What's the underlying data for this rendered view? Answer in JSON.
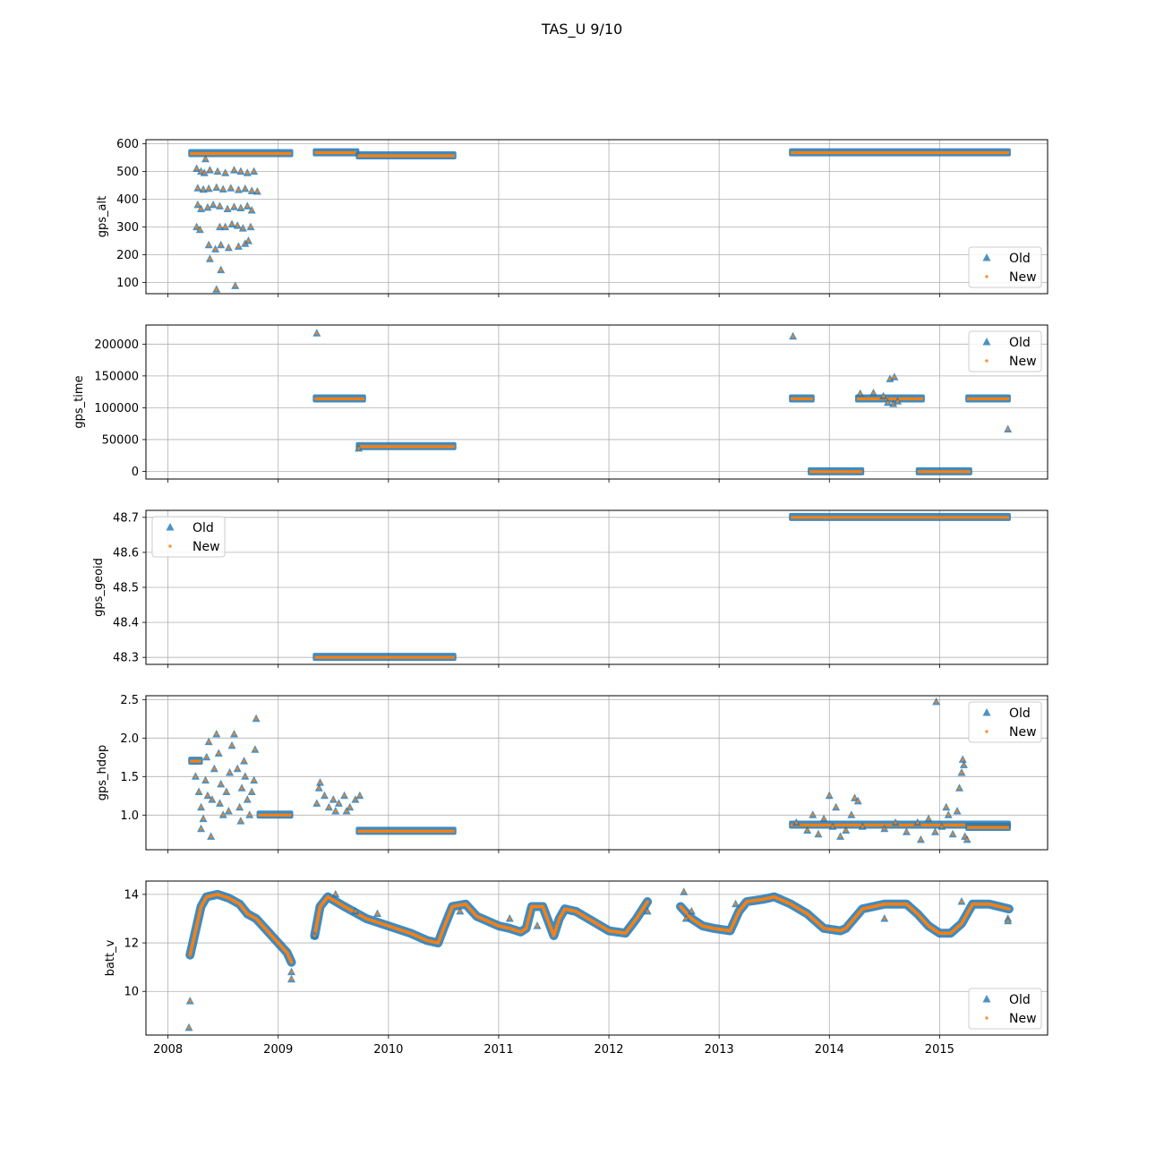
{
  "figure": {
    "title": "TAS_U 9/10"
  },
  "colors": {
    "old": "#1f77b4",
    "new": "#ff7f0e",
    "grid": "#b0b0b0"
  },
  "chart_data": [
    {
      "type": "scatter",
      "ylabel": "gps_alt",
      "xlim": [
        2007.8,
        2015.98
      ],
      "ylim": [
        60,
        615
      ],
      "yticks": [
        100,
        200,
        300,
        400,
        500,
        600
      ],
      "legend": "lower-right",
      "series": [
        {
          "name": "Old"
        },
        {
          "name": "New"
        }
      ],
      "segments": [
        {
          "x0": 2008.2,
          "x1": 2009.12,
          "y": 565
        },
        {
          "x0": 2009.33,
          "x1": 2009.72,
          "y": 568
        },
        {
          "x0": 2009.72,
          "x1": 2010.6,
          "y": 557
        },
        {
          "x0": 2013.65,
          "x1": 2015.63,
          "y": 568
        }
      ],
      "points": [
        [
          2008.26,
          510
        ],
        [
          2008.3,
          500
        ],
        [
          2008.33,
          495
        ],
        [
          2008.38,
          505
        ],
        [
          2008.45,
          500
        ],
        [
          2008.52,
          495
        ],
        [
          2008.6,
          505
        ],
        [
          2008.66,
          500
        ],
        [
          2008.72,
          495
        ],
        [
          2008.78,
          500
        ],
        [
          2008.27,
          440
        ],
        [
          2008.32,
          435
        ],
        [
          2008.37,
          438
        ],
        [
          2008.44,
          442
        ],
        [
          2008.5,
          436
        ],
        [
          2008.57,
          440
        ],
        [
          2008.64,
          434
        ],
        [
          2008.7,
          438
        ],
        [
          2008.76,
          430
        ],
        [
          2008.81,
          428
        ],
        [
          2008.27,
          380
        ],
        [
          2008.3,
          365
        ],
        [
          2008.36,
          370
        ],
        [
          2008.41,
          380
        ],
        [
          2008.47,
          375
        ],
        [
          2008.54,
          365
        ],
        [
          2008.6,
          372
        ],
        [
          2008.66,
          368
        ],
        [
          2008.72,
          375
        ],
        [
          2008.76,
          360
        ],
        [
          2008.26,
          300
        ],
        [
          2008.29,
          290
        ],
        [
          2008.47,
          300
        ],
        [
          2008.52,
          300
        ],
        [
          2008.58,
          310
        ],
        [
          2008.63,
          305
        ],
        [
          2008.68,
          295
        ],
        [
          2008.75,
          300
        ],
        [
          2008.37,
          235
        ],
        [
          2008.43,
          220
        ],
        [
          2008.48,
          235
        ],
        [
          2008.55,
          225
        ],
        [
          2008.64,
          230
        ],
        [
          2008.7,
          240
        ],
        [
          2008.73,
          250
        ],
        [
          2008.38,
          185
        ],
        [
          2008.48,
          145
        ],
        [
          2008.44,
          75
        ],
        [
          2008.61,
          88
        ],
        [
          2008.34,
          545
        ]
      ]
    },
    {
      "type": "scatter",
      "ylabel": "gps_time",
      "xlim": [
        2007.8,
        2015.98
      ],
      "ylim": [
        -12000,
        230000
      ],
      "yticks": [
        0,
        50000,
        100000,
        150000,
        200000
      ],
      "legend": "upper-right",
      "series": [
        {
          "name": "Old"
        },
        {
          "name": "New"
        }
      ],
      "segments": [
        {
          "x0": 2009.33,
          "x1": 2009.78,
          "y": 114000
        },
        {
          "x0": 2009.72,
          "x1": 2010.6,
          "y": 39000
        },
        {
          "x0": 2013.65,
          "x1": 2013.85,
          "y": 114000
        },
        {
          "x0": 2013.82,
          "x1": 2014.3,
          "y": -500
        },
        {
          "x0": 2014.25,
          "x1": 2014.85,
          "y": 114000
        },
        {
          "x0": 2014.8,
          "x1": 2015.28,
          "y": -500
        },
        {
          "x0": 2015.25,
          "x1": 2015.63,
          "y": 114000
        }
      ],
      "points": [
        [
          2009.35,
          217000
        ],
        [
          2013.67,
          212000
        ],
        [
          2009.73,
          36000
        ],
        [
          2014.28,
          122000
        ],
        [
          2014.4,
          123000
        ],
        [
          2014.49,
          118000
        ],
        [
          2014.55,
          145000
        ],
        [
          2014.59,
          148000
        ],
        [
          2014.53,
          108000
        ],
        [
          2014.58,
          106000
        ],
        [
          2014.62,
          110000
        ],
        [
          2015.62,
          66000
        ]
      ]
    },
    {
      "type": "scatter",
      "ylabel": "gps_geoid",
      "xlim": [
        2007.8,
        2015.98
      ],
      "ylim": [
        48.28,
        48.72
      ],
      "yticks": [
        48.3,
        48.4,
        48.5,
        48.6,
        48.7
      ],
      "legend": "upper-left",
      "series": [
        {
          "name": "Old"
        },
        {
          "name": "New"
        }
      ],
      "segments": [
        {
          "x0": 2009.33,
          "x1": 2010.6,
          "y": 48.3
        },
        {
          "x0": 2013.65,
          "x1": 2015.63,
          "y": 48.7
        }
      ],
      "points": []
    },
    {
      "type": "scatter",
      "ylabel": "gps_hdop",
      "xlim": [
        2007.8,
        2015.98
      ],
      "ylim": [
        0.55,
        2.55
      ],
      "yticks": [
        1.0,
        1.5,
        2.0,
        2.5
      ],
      "legend": "upper-right",
      "series": [
        {
          "name": "Old"
        },
        {
          "name": "New"
        }
      ],
      "segments": [
        {
          "x0": 2008.2,
          "x1": 2008.3,
          "y": 1.7
        },
        {
          "x0": 2008.82,
          "x1": 2009.12,
          "y": 1.0
        },
        {
          "x0": 2009.72,
          "x1": 2010.6,
          "y": 0.79
        },
        {
          "x0": 2013.65,
          "x1": 2015.63,
          "y": 0.87
        },
        {
          "x0": 2015.25,
          "x1": 2015.63,
          "y": 0.84
        }
      ],
      "points": [
        [
          2008.25,
          1.5
        ],
        [
          2008.28,
          1.3
        ],
        [
          2008.3,
          1.1
        ],
        [
          2008.32,
          0.95
        ],
        [
          2008.35,
          1.75
        ],
        [
          2008.37,
          1.95
        ],
        [
          2008.4,
          1.2
        ],
        [
          2008.42,
          1.6
        ],
        [
          2008.44,
          2.05
        ],
        [
          2008.46,
          1.8
        ],
        [
          2008.48,
          1.4
        ],
        [
          2008.5,
          1.0
        ],
        [
          2008.53,
          1.3
        ],
        [
          2008.56,
          1.55
        ],
        [
          2008.58,
          1.9
        ],
        [
          2008.6,
          2.05
        ],
        [
          2008.63,
          1.6
        ],
        [
          2008.65,
          1.1
        ],
        [
          2008.67,
          1.35
        ],
        [
          2008.7,
          1.5
        ],
        [
          2008.72,
          1.2
        ],
        [
          2008.74,
          1.0
        ],
        [
          2008.78,
          1.45
        ],
        [
          2008.79,
          1.85
        ],
        [
          2008.8,
          2.25
        ],
        [
          2008.39,
          0.72
        ],
        [
          2008.3,
          0.82
        ],
        [
          2008.66,
          0.92
        ],
        [
          2008.36,
          1.25
        ],
        [
          2008.47,
          1.15
        ],
        [
          2008.55,
          1.05
        ],
        [
          2008.69,
          1.7
        ],
        [
          2008.76,
          1.3
        ],
        [
          2008.34,
          1.45
        ],
        [
          2009.35,
          1.15
        ],
        [
          2009.37,
          1.35
        ],
        [
          2009.38,
          1.42
        ],
        [
          2009.42,
          1.25
        ],
        [
          2009.46,
          1.1
        ],
        [
          2009.5,
          1.2
        ],
        [
          2009.55,
          1.15
        ],
        [
          2009.6,
          1.25
        ],
        [
          2009.65,
          1.1
        ],
        [
          2009.7,
          1.2
        ],
        [
          2009.74,
          1.25
        ],
        [
          2009.52,
          1.05
        ],
        [
          2009.62,
          1.05
        ],
        [
          2013.7,
          0.9
        ],
        [
          2013.8,
          0.8
        ],
        [
          2013.85,
          1.0
        ],
        [
          2013.9,
          0.75
        ],
        [
          2013.95,
          0.95
        ],
        [
          2014.0,
          1.25
        ],
        [
          2014.03,
          0.85
        ],
        [
          2014.06,
          1.1
        ],
        [
          2014.1,
          0.72
        ],
        [
          2014.15,
          0.8
        ],
        [
          2014.2,
          1.0
        ],
        [
          2014.23,
          1.22
        ],
        [
          2014.26,
          1.18
        ],
        [
          2014.3,
          0.85
        ],
        [
          2014.5,
          0.82
        ],
        [
          2014.6,
          0.9
        ],
        [
          2014.7,
          0.78
        ],
        [
          2014.8,
          0.9
        ],
        [
          2014.83,
          0.68
        ],
        [
          2014.9,
          0.95
        ],
        [
          2014.96,
          0.78
        ],
        [
          2014.97,
          2.47
        ],
        [
          2015.02,
          0.85
        ],
        [
          2015.06,
          1.1
        ],
        [
          2015.08,
          1.0
        ],
        [
          2015.12,
          0.75
        ],
        [
          2015.16,
          1.05
        ],
        [
          2015.18,
          1.35
        ],
        [
          2015.2,
          1.55
        ],
        [
          2015.21,
          1.72
        ],
        [
          2015.22,
          1.65
        ],
        [
          2015.23,
          0.72
        ],
        [
          2015.25,
          0.68
        ]
      ]
    },
    {
      "type": "scatter",
      "ylabel": "batt_v",
      "xlim": [
        2007.8,
        2015.98
      ],
      "ylim": [
        8.2,
        14.55
      ],
      "yticks": [
        10,
        12,
        14
      ],
      "xticks": [
        "2008",
        "2009",
        "2010",
        "2011",
        "2012",
        "2013",
        "2014",
        "2015"
      ],
      "legend": "lower-right",
      "series": [
        {
          "name": "Old"
        },
        {
          "name": "New"
        }
      ],
      "curves": [
        [
          [
            2008.2,
            11.5
          ],
          [
            2008.25,
            12.5
          ],
          [
            2008.3,
            13.5
          ],
          [
            2008.35,
            13.9
          ],
          [
            2008.45,
            14.0
          ],
          [
            2008.55,
            13.85
          ],
          [
            2008.65,
            13.6
          ],
          [
            2008.72,
            13.2
          ],
          [
            2008.8,
            13.0
          ],
          [
            2008.9,
            12.5
          ],
          [
            2009.0,
            12.0
          ],
          [
            2009.08,
            11.6
          ],
          [
            2009.12,
            11.2
          ]
        ],
        [
          [
            2009.33,
            12.3
          ],
          [
            2009.38,
            13.5
          ],
          [
            2009.45,
            13.9
          ],
          [
            2009.6,
            13.5
          ],
          [
            2009.8,
            13.0
          ],
          [
            2010.0,
            12.7
          ],
          [
            2010.2,
            12.4
          ],
          [
            2010.35,
            12.1
          ],
          [
            2010.45,
            12.0
          ],
          [
            2010.5,
            12.6
          ],
          [
            2010.58,
            13.5
          ],
          [
            2010.7,
            13.6
          ],
          [
            2010.8,
            13.1
          ],
          [
            2011.0,
            12.7
          ],
          [
            2011.1,
            12.6
          ],
          [
            2011.2,
            12.45
          ],
          [
            2011.25,
            12.6
          ],
          [
            2011.3,
            13.5
          ],
          [
            2011.4,
            13.5
          ],
          [
            2011.45,
            12.9
          ],
          [
            2011.5,
            12.3
          ],
          [
            2011.55,
            13.0
          ],
          [
            2011.6,
            13.4
          ],
          [
            2011.7,
            13.3
          ],
          [
            2011.85,
            12.9
          ],
          [
            2012.0,
            12.5
          ],
          [
            2012.15,
            12.4
          ],
          [
            2012.25,
            13.0
          ],
          [
            2012.35,
            13.7
          ]
        ],
        [
          [
            2012.65,
            13.5
          ],
          [
            2012.75,
            13.0
          ],
          [
            2012.85,
            12.7
          ],
          [
            2012.95,
            12.6
          ],
          [
            2013.1,
            12.5
          ],
          [
            2013.18,
            13.3
          ],
          [
            2013.25,
            13.7
          ],
          [
            2013.4,
            13.8
          ],
          [
            2013.5,
            13.9
          ],
          [
            2013.65,
            13.6
          ],
          [
            2013.8,
            13.2
          ],
          [
            2013.95,
            12.6
          ],
          [
            2014.1,
            12.5
          ],
          [
            2014.15,
            12.6
          ],
          [
            2014.3,
            13.4
          ],
          [
            2014.5,
            13.6
          ],
          [
            2014.7,
            13.6
          ],
          [
            2014.8,
            13.2
          ],
          [
            2014.9,
            12.7
          ],
          [
            2015.0,
            12.4
          ],
          [
            2015.1,
            12.4
          ],
          [
            2015.2,
            12.8
          ],
          [
            2015.3,
            13.6
          ],
          [
            2015.45,
            13.6
          ],
          [
            2015.63,
            13.4
          ]
        ]
      ],
      "points": [
        [
          2008.2,
          9.6
        ],
        [
          2008.19,
          8.5
        ],
        [
          2009.12,
          10.5
        ],
        [
          2009.12,
          10.8
        ],
        [
          2009.33,
          12.3
        ],
        [
          2009.52,
          14.0
        ],
        [
          2012.35,
          13.3
        ],
        [
          2012.68,
          14.1
        ],
        [
          2012.7,
          13.0
        ],
        [
          2013.15,
          13.6
        ],
        [
          2014.5,
          13.0
        ],
        [
          2015.2,
          13.7
        ],
        [
          2015.62,
          13.0
        ],
        [
          2015.62,
          12.9
        ],
        [
          2011.1,
          13.0
        ],
        [
          2011.35,
          12.7
        ],
        [
          2009.7,
          13.3
        ],
        [
          2009.9,
          13.2
        ],
        [
          2010.65,
          13.3
        ],
        [
          2012.75,
          13.3
        ]
      ]
    }
  ]
}
